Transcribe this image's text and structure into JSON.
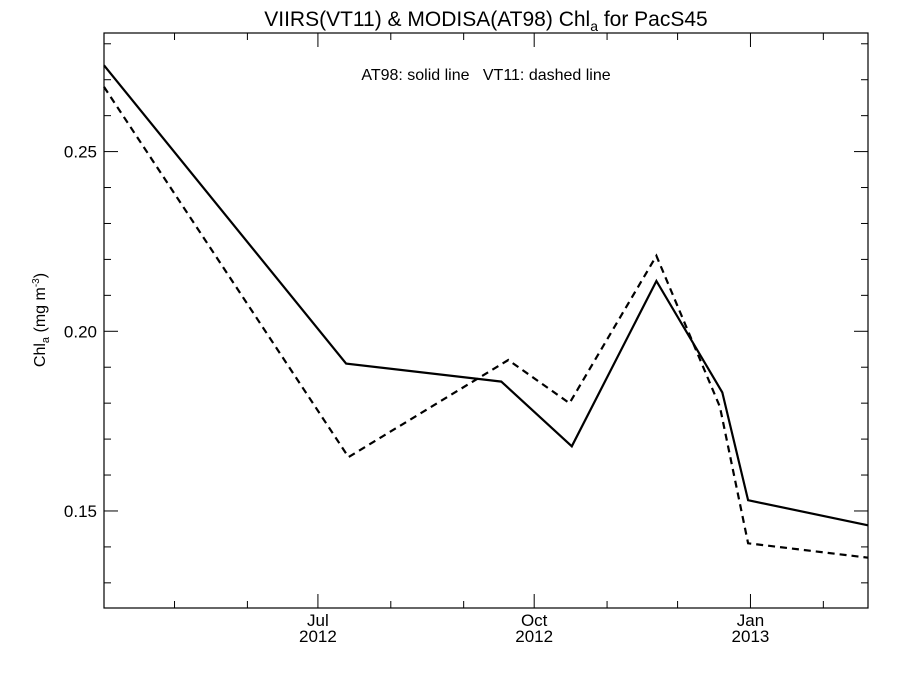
{
  "chart_data": {
    "type": "line",
    "title": {
      "main": "VIIRS(VT11) & MODISA(AT98)  Chl",
      "sub": "a",
      "tail": " for PacS45"
    },
    "ylabel": {
      "main": "Chl",
      "sub": "a",
      "unit_pre": " (mg m",
      "unit_sup": "-3",
      "unit_post": ")"
    },
    "legend_text": "AT98: solid line   VT11: dashed line",
    "xlim": [
      "2012-04-01",
      "2013-02-20"
    ],
    "ylim": [
      0.123,
      0.283
    ],
    "x_ticks": [
      {
        "date": "2012-07-01",
        "month": "Jul",
        "year": "2012"
      },
      {
        "date": "2012-10-01",
        "month": "Oct",
        "year": "2012"
      },
      {
        "date": "2013-01-01",
        "month": "Jan",
        "year": "2013"
      }
    ],
    "x_minor_months": [
      "2012-05-01",
      "2012-06-01",
      "2012-08-01",
      "2012-09-01",
      "2012-11-01",
      "2012-12-01",
      "2013-02-01"
    ],
    "y_ticks": [
      {
        "value": 0.15,
        "label": "0.15"
      },
      {
        "value": 0.2,
        "label": "0.20"
      },
      {
        "value": 0.25,
        "label": "0.25"
      }
    ],
    "y_minor": [
      0.13,
      0.14,
      0.16,
      0.17,
      0.18,
      0.19,
      0.21,
      0.22,
      0.23,
      0.24,
      0.26,
      0.27,
      0.28
    ],
    "grid": false,
    "series": [
      {
        "name": "AT98",
        "style": "solid",
        "color": "#000000",
        "points": [
          {
            "x": "2012-04-01",
            "y": 0.274
          },
          {
            "x": "2012-07-13",
            "y": 0.191
          },
          {
            "x": "2012-09-17",
            "y": 0.186
          },
          {
            "x": "2012-10-17",
            "y": 0.168
          },
          {
            "x": "2012-11-22",
            "y": 0.214
          },
          {
            "x": "2012-12-20",
            "y": 0.183
          },
          {
            "x": "2012-12-31",
            "y": 0.153
          },
          {
            "x": "2013-02-20",
            "y": 0.146
          }
        ]
      },
      {
        "name": "VT11",
        "style": "dashed",
        "color": "#000000",
        "points": [
          {
            "x": "2012-04-01",
            "y": 0.268
          },
          {
            "x": "2012-07-14",
            "y": 0.165
          },
          {
            "x": "2012-09-20",
            "y": 0.192
          },
          {
            "x": "2012-10-16",
            "y": 0.18
          },
          {
            "x": "2012-11-22",
            "y": 0.221
          },
          {
            "x": "2012-12-19",
            "y": 0.179
          },
          {
            "x": "2012-12-31",
            "y": 0.141
          },
          {
            "x": "2013-02-20",
            "y": 0.137
          }
        ]
      }
    ]
  }
}
